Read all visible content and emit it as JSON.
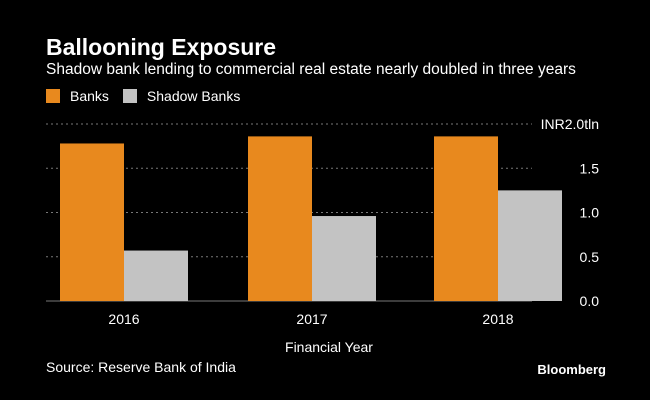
{
  "colors": {
    "background": "#000000",
    "banks": "#e8891e",
    "shadow_banks": "#c3c3c3",
    "text": "#ffffff",
    "grid": "#777777"
  },
  "brand": "Bloomberg",
  "source": "Source: Reserve Bank of India",
  "chart_data": {
    "type": "bar",
    "title": "Ballooning Exposure",
    "subtitle": "Shadow bank lending to commercial real estate nearly doubled in three years",
    "categories": [
      "2016",
      "2017",
      "2018"
    ],
    "series": [
      {
        "name": "Banks",
        "values": [
          1.78,
          1.86,
          1.86
        ]
      },
      {
        "name": "Shadow Banks",
        "values": [
          0.57,
          0.96,
          1.25
        ]
      }
    ],
    "xlabel": "Financial Year",
    "ylabel": "",
    "ylim": [
      0,
      2.0
    ],
    "yticks": [
      0,
      0.5,
      1.0,
      1.5,
      2.0
    ],
    "ytick_labels": [
      "0.0",
      "0.5",
      "1.0",
      "1.5",
      "INR2.0tln"
    ],
    "grid": true,
    "legend_position": "top-left"
  }
}
